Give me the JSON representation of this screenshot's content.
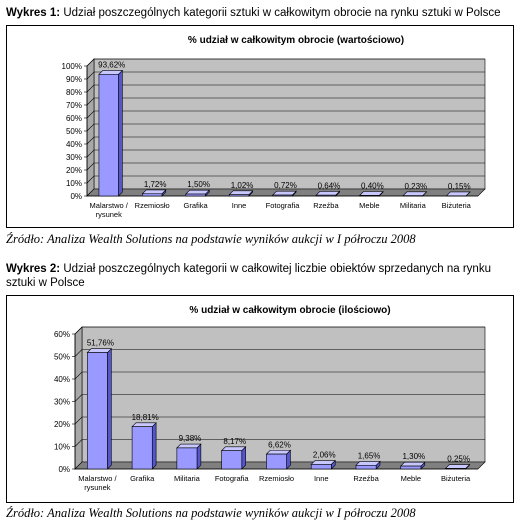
{
  "captions": [
    {
      "label": "Wykres 1:",
      "text": " Udział poszczególnych kategorii sztuki w całkowitym obrocie na rynku sztuki w Polsce"
    },
    {
      "label": "Wykres 2:",
      "text": " Udział poszczególnych kategorii w całkowitej liczbie obiektów sprzedanych na rynku sztuki w Polsce"
    }
  ],
  "sources": [
    "Źródło: Analiza Wealth Solutions na podstawie wyników aukcji w I półroczu 2008",
    "Źródło: Analiza Wealth Solutions na podstawie wyników aukcji w I półroczu 2008"
  ],
  "colors": {
    "bar_front": "#9999ff",
    "bar_side": "#5555cc",
    "bar_top": "#c8c8ff",
    "plot_bg": "#c0c0c0",
    "floor": "#808080"
  },
  "chart_data": [
    {
      "type": "bar",
      "title": "% udział w całkowitym obrocie (wartościowo)",
      "categories": [
        "Malarstwo / rysunek",
        "Rzemiosło",
        "Grafika",
        "Inne",
        "Fotografia",
        "Rzeźba",
        "Meble",
        "Militaria",
        "Biżuteria"
      ],
      "values": [
        93.62,
        1.72,
        1.5,
        1.02,
        0.72,
        0.64,
        0.4,
        0.23,
        0.15
      ],
      "data_labels": [
        "93,62%",
        "1,72%",
        "1,50%",
        "1,02%",
        "0,72%",
        "0,64%",
        "0,40%",
        "0,23%",
        "0,15%"
      ],
      "y_ticks": [
        "0%",
        "10%",
        "20%",
        "30%",
        "40%",
        "50%",
        "60%",
        "70%",
        "80%",
        "90%",
        "100%"
      ],
      "ylim": [
        0,
        100
      ],
      "grid": true,
      "legend": "none"
    },
    {
      "type": "bar",
      "title": "% udział w całkowitym obrocie (ilościowo)",
      "categories": [
        "Malarstwo / rysunek",
        "Grafika",
        "Militaria",
        "Fotografia",
        "Rzemiosło",
        "Inne",
        "Rzeźba",
        "Meble",
        "Biżuteria"
      ],
      "values": [
        51.76,
        18.81,
        9.38,
        8.17,
        6.62,
        2.06,
        1.65,
        1.3,
        0.25
      ],
      "data_labels": [
        "51,76%",
        "18,81%",
        "9,38%",
        "8,17%",
        "6,62%",
        "2,06%",
        "1,65%",
        "1,30%",
        "0,25%"
      ],
      "y_ticks": [
        "0%",
        "10%",
        "20%",
        "30%",
        "40%",
        "50%",
        "60%"
      ],
      "ylim": [
        0,
        60
      ],
      "grid": true,
      "legend": "none"
    }
  ]
}
